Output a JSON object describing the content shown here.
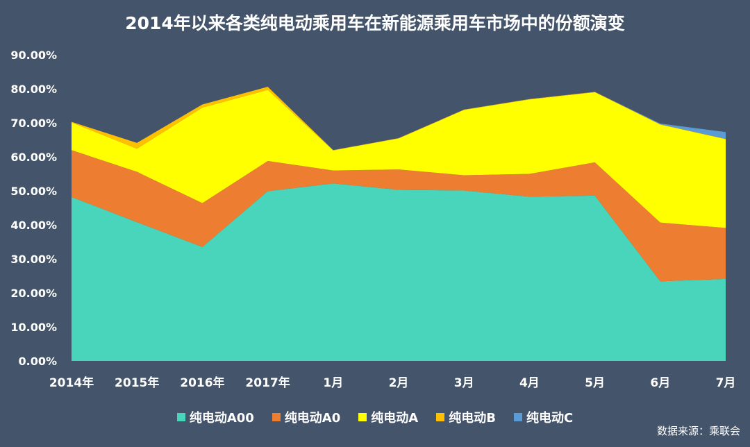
{
  "chart_data": {
    "type": "area",
    "stacked": true,
    "title": "2014年以来各类纯电动乘用车在新能源乘用车市场中的份额演变",
    "categories": [
      "2014年",
      "2015年",
      "2016年",
      "2017年",
      "1月",
      "2月",
      "3月",
      "4月",
      "5月",
      "6月",
      "7月"
    ],
    "ylim": [
      0,
      90
    ],
    "yticks": [
      "0.00%",
      "10.00%",
      "20.00%",
      "30.00%",
      "40.00%",
      "50.00%",
      "60.00%",
      "70.00%",
      "80.00%",
      "90.00%"
    ],
    "legend_position": "bottom",
    "grid": false,
    "series": [
      {
        "name": "纯电动A00",
        "color": "#48d5bb",
        "values": [
          48.2,
          40.8,
          33.5,
          49.9,
          52.2,
          50.3,
          50.1,
          48.3,
          48.6,
          23.4,
          24.1
        ]
      },
      {
        "name": "纯电动A0",
        "color": "#ed7d31",
        "values": [
          13.8,
          14.8,
          12.9,
          8.9,
          3.8,
          6.0,
          4.5,
          6.7,
          9.8,
          17.3,
          15.0
        ]
      },
      {
        "name": "纯电动A",
        "color": "#ffff00",
        "values": [
          8.1,
          6.8,
          28.1,
          20.9,
          5.9,
          9.1,
          19.2,
          21.9,
          20.6,
          28.8,
          26.1
        ]
      },
      {
        "name": "纯电动B",
        "color": "#ffc000",
        "values": [
          0.2,
          1.7,
          0.9,
          0.9,
          0.1,
          0.1,
          0.1,
          0.1,
          0.1,
          0.1,
          0.1
        ]
      },
      {
        "name": "纯电动C",
        "color": "#5b9bd5",
        "values": [
          0,
          0,
          0,
          0,
          0,
          0,
          0,
          0,
          0,
          0.2,
          2.0
        ]
      }
    ]
  },
  "source": "数据来源：乘联会"
}
